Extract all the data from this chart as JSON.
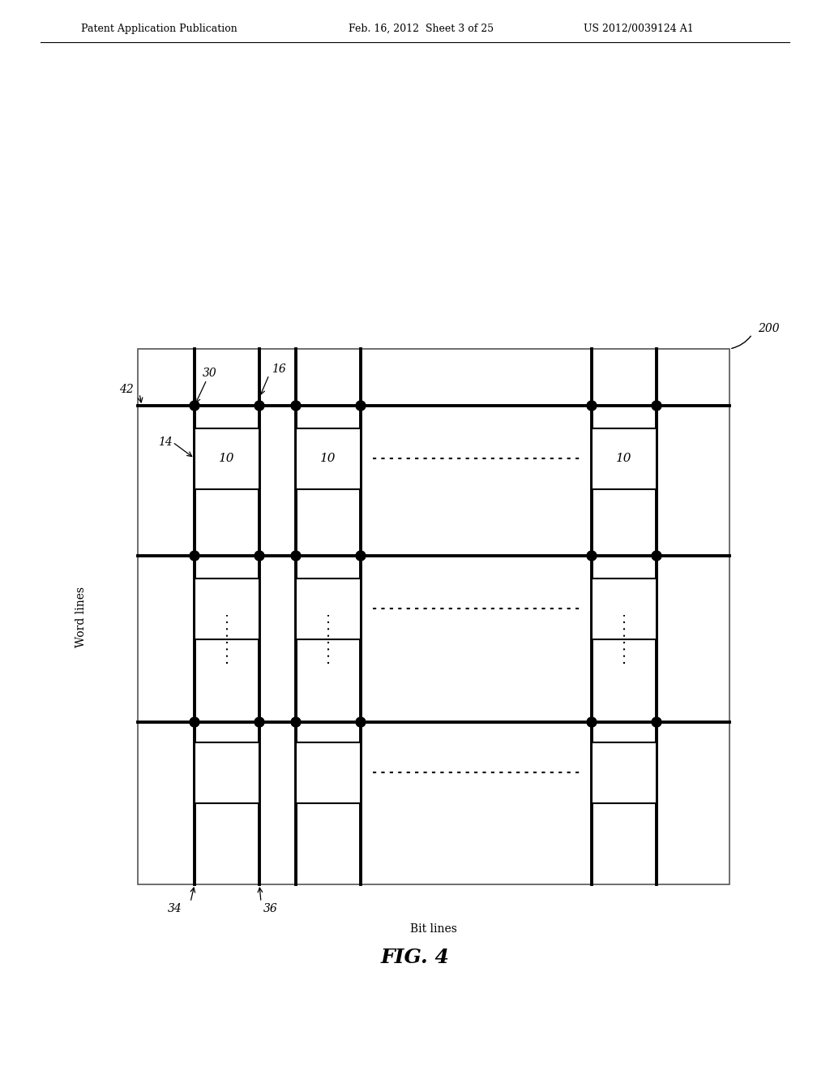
{
  "bg_color": "#ffffff",
  "header_left": "Patent Application Publication",
  "header_mid": "Feb. 16, 2012  Sheet 3 of 25",
  "header_right": "US 2012/0039124 A1",
  "fig_label": "FIG. 4",
  "word_lines_label": "Word lines",
  "bit_lines_label": "Bit lines",
  "label_200": "200",
  "label_42": "42",
  "label_30": "30",
  "label_14": "14",
  "label_16": "16",
  "label_34": "34",
  "label_36": "36",
  "cell_label": "10"
}
